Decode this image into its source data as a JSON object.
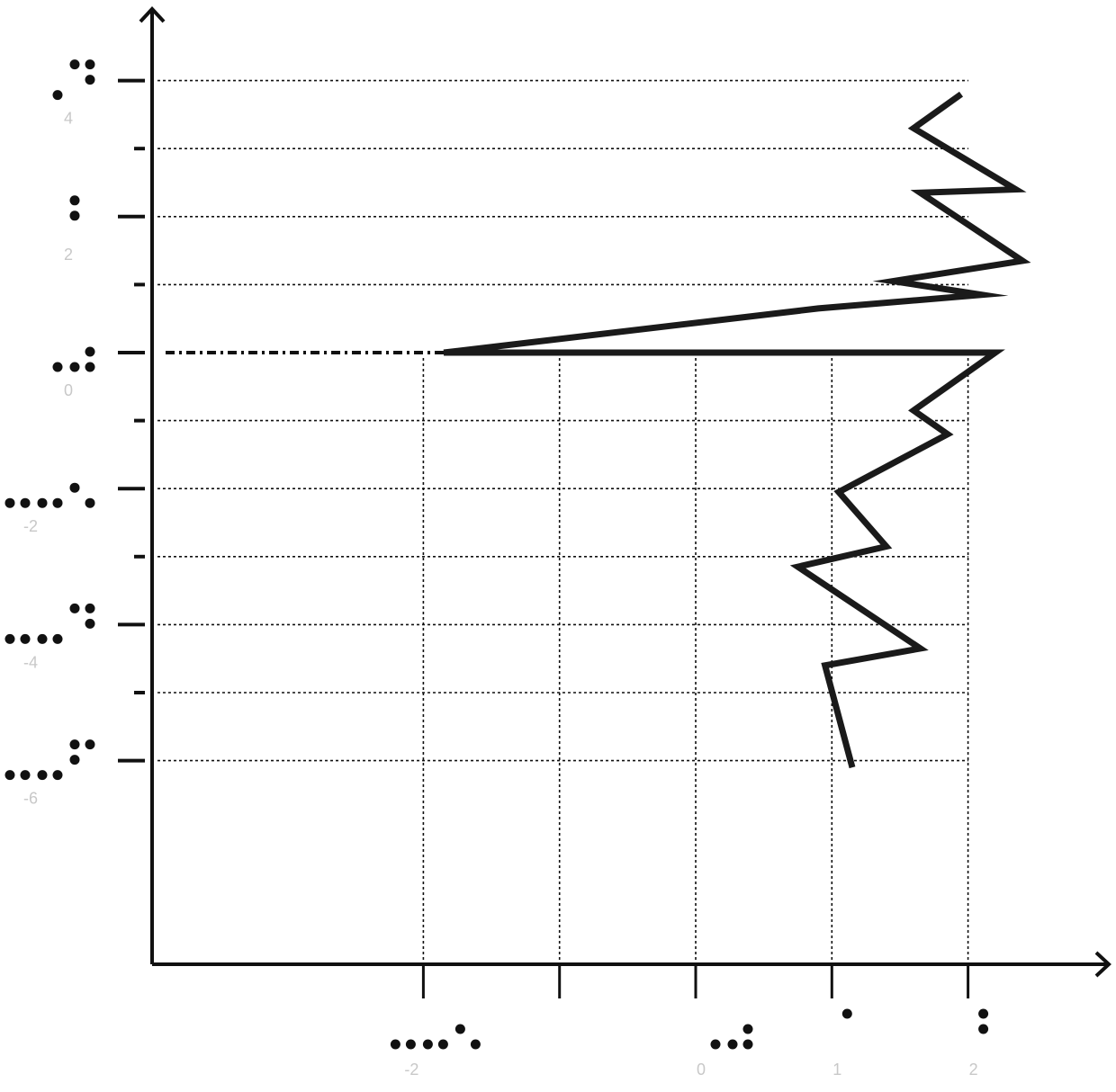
{
  "chart_data": {
    "type": "line",
    "title": "",
    "xlabel": "",
    "ylabel": "",
    "xlim": [
      -4,
      2.6
    ],
    "ylim": [
      -8.9,
      4.6
    ],
    "grid": true,
    "x_ticks": [
      {
        "value": -2,
        "label": "-2",
        "braille": "⠤⠤⠢"
      },
      {
        "value": -1,
        "label": "",
        "braille": ""
      },
      {
        "value": 0,
        "label": "0",
        "braille": "⠠⠴"
      },
      {
        "value": 1,
        "label": "1",
        "braille": "⠁"
      },
      {
        "value": 2,
        "label": "2",
        "braille": "⠃"
      }
    ],
    "y_ticks": [
      {
        "value": 4,
        "label": "4",
        "braille": "⠠⠙"
      },
      {
        "value": 2,
        "label": "2",
        "braille": "⠃"
      },
      {
        "value": 0,
        "label": "0",
        "braille": "⠠⠴"
      },
      {
        "value": -2,
        "label": "-2",
        "braille": "⠤⠤⠢"
      },
      {
        "value": -4,
        "label": "-4",
        "braille": "⠤⠤⠙"
      },
      {
        "value": -6,
        "label": "-6",
        "braille": "⠤⠤⠋"
      }
    ],
    "y_minor_ticks": [
      3,
      1,
      -1,
      -3,
      -5
    ],
    "series": [
      {
        "values": [
          {
            "x": 1.95,
            "y": 3.8
          },
          {
            "x": 1.6,
            "y": 3.3
          },
          {
            "x": 2.35,
            "y": 2.4
          },
          {
            "x": 1.65,
            "y": 2.35
          },
          {
            "x": 2.4,
            "y": 1.35
          },
          {
            "x": 1.45,
            "y": 1.05
          },
          {
            "x": 2.1,
            "y": 0.85
          },
          {
            "x": 0.9,
            "y": 0.65
          },
          {
            "x": -1.85,
            "y": 0
          },
          {
            "x": 2.2,
            "y": 0
          },
          {
            "x": 1.6,
            "y": -0.85
          },
          {
            "x": 1.85,
            "y": -1.2
          },
          {
            "x": 1.05,
            "y": -2.05
          },
          {
            "x": 1.4,
            "y": -2.85
          },
          {
            "x": 0.75,
            "y": -3.15
          },
          {
            "x": 1.65,
            "y": -4.35
          },
          {
            "x": 0.95,
            "y": -4.6
          },
          {
            "x": 1.15,
            "y": -6.1
          }
        ]
      }
    ],
    "reference_line": {
      "y": 0,
      "x_from": -4,
      "x_to": -1.85,
      "style": "dash-dot"
    }
  }
}
